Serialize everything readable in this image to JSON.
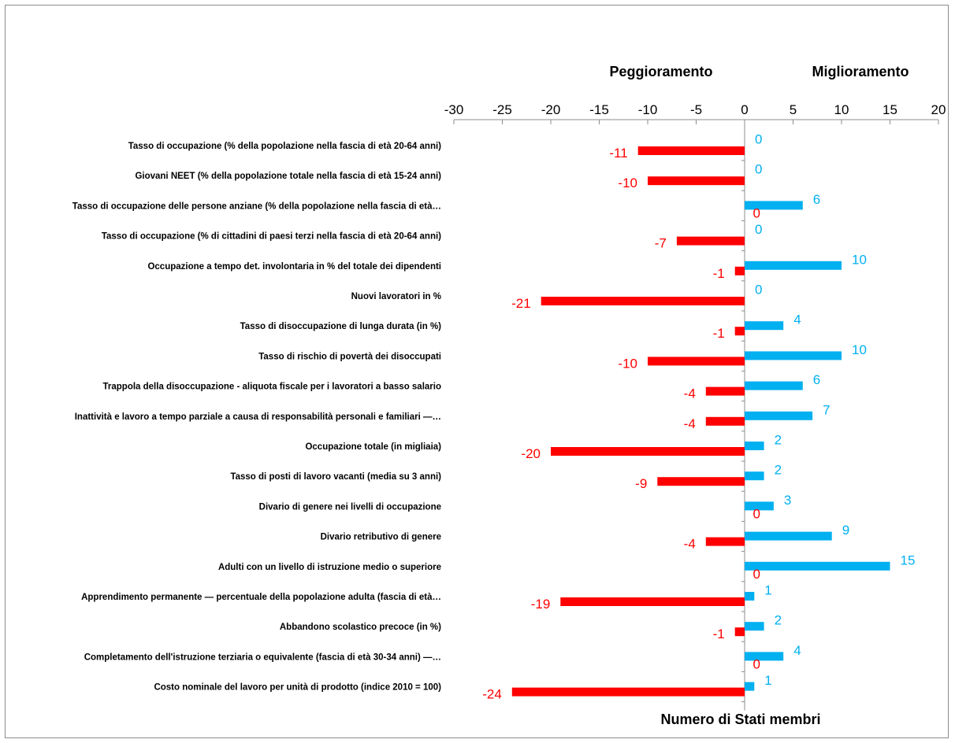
{
  "chart_data": {
    "type": "bar",
    "orientation": "horizontal",
    "header_left": "Peggioramento",
    "header_right": "Miglioramento",
    "xlabel": "Numero di Stati membri",
    "xlim": [
      -30,
      20
    ],
    "xticks": [
      -30,
      -25,
      -20,
      -15,
      -10,
      -5,
      0,
      5,
      10,
      15,
      20
    ],
    "categories": [
      "Tasso di occupazione (% della popolazione nella fascia di età 20-64 anni)",
      "Giovani NEET (% della popolazione totale nella fascia di età 15-24 anni)",
      "Tasso di occupazione delle persone anziane (% della popolazione nella fascia di età…",
      "Tasso di occupazione (% di cittadini di paesi terzi nella fascia di età 20-64 anni)",
      "Occupazione a tempo det. involontaria in % del totale dei dipendenti",
      "Nuovi lavoratori in %",
      "Tasso di disoccupazione di lunga durata (in %)",
      "Tasso di rischio di povertà dei disoccupati",
      "Trappola della disoccupazione - aliquota fiscale per i lavoratori a basso salario",
      "Inattività e lavoro a tempo parziale a causa di responsabilità personali e familiari —…",
      "Occupazione totale (in migliaia)",
      "Tasso di posti di lavoro vacanti (media su 3 anni)",
      "Divario di genere nei livelli di occupazione",
      "Divario retributivo di genere",
      "Adulti con un livello di istruzione medio o superiore",
      "Apprendimento permanente — percentuale della popolazione adulta (fascia di età…",
      "Abbandono scolastico precoce (in %)",
      "Completamento dell'istruzione terziaria o equivalente (fascia di età 30-34 anni) —…",
      "Costo nominale del lavoro per unità di prodotto (indice 2010 = 100)"
    ],
    "series": [
      {
        "name": "",
        "color": "#ff0000",
        "values": [
          -11,
          -10,
          0,
          -7,
          -1,
          -21,
          -1,
          -10,
          -4,
          -4,
          -20,
          -9,
          0,
          -4,
          0,
          -19,
          -1,
          0,
          -24
        ]
      },
      {
        "name": "",
        "color": "#00b0f0",
        "values": [
          0,
          0,
          6,
          0,
          10,
          0,
          4,
          10,
          6,
          7,
          2,
          2,
          3,
          9,
          15,
          1,
          2,
          4,
          1
        ]
      }
    ],
    "grid": false
  }
}
